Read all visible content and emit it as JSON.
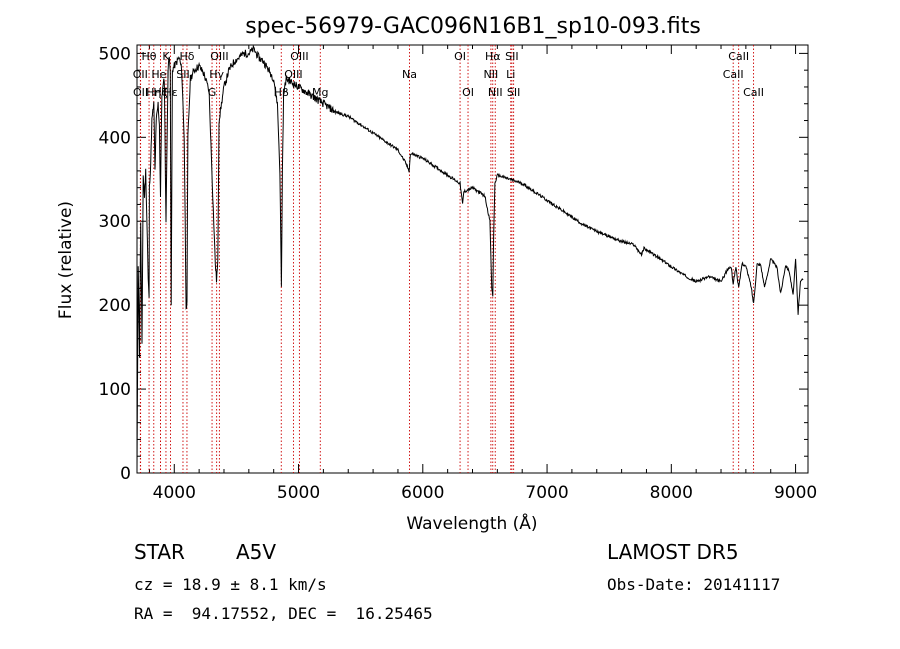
{
  "chart_data": {
    "type": "line",
    "title": "spec-56979-GAC096N16B1_sp10-093.fits",
    "xlabel": "Wavelength (Å)",
    "ylabel": "Flux (relative)",
    "xlim": [
      3700,
      9100
    ],
    "ylim": [
      0,
      510
    ],
    "xticks": [
      4000,
      5000,
      6000,
      7000,
      8000,
      9000
    ],
    "yticks": [
      0,
      100,
      200,
      300,
      400,
      500
    ],
    "grid": false,
    "line_color": "#000000",
    "marker_color": "#cc0000",
    "series": [
      {
        "x": [
          3700,
          3710,
          3720,
          3730,
          3740,
          3750,
          3760,
          3770,
          3780,
          3790,
          3797,
          3800,
          3810,
          3820,
          3835,
          3845,
          3855,
          3870,
          3880,
          3889,
          3900,
          3920,
          3933,
          3950,
          3960,
          3968,
          3975,
          3985,
          4000,
          4020,
          4040,
          4060,
          4080,
          4095,
          4102,
          4110,
          4130,
          4160,
          4200,
          4240,
          4280,
          4310,
          4330,
          4340,
          4350,
          4360,
          4400,
          4440,
          4480,
          4520,
          4560,
          4600,
          4640,
          4680,
          4720,
          4760,
          4800,
          4830,
          4850,
          4862,
          4870,
          4880,
          4900,
          4950,
          5000,
          5050,
          5100,
          5150,
          5200,
          5300,
          5400,
          5500,
          5600,
          5700,
          5800,
          5860,
          5890,
          5900,
          5920,
          6000,
          6100,
          6200,
          6300,
          6320,
          6330,
          6400,
          6450,
          6500,
          6540,
          6555,
          6563,
          6570,
          6580,
          6600,
          6700,
          6800,
          6900,
          7000,
          7100,
          7200,
          7300,
          7400,
          7500,
          7600,
          7700,
          7760,
          7780,
          7800,
          7900,
          8000,
          8100,
          8200,
          8300,
          8400,
          8450,
          8480,
          8498,
          8520,
          8542,
          8570,
          8600,
          8640,
          8662,
          8690,
          8720,
          8750,
          8800,
          8850,
          8880,
          8920,
          8950,
          8980,
          9000,
          9020,
          9040,
          9060
        ],
        "values": [
          0,
          250,
          140,
          300,
          150,
          355,
          330,
          360,
          300,
          230,
          210,
          340,
          370,
          420,
          440,
          360,
          420,
          440,
          415,
          330,
          450,
          470,
          300,
          480,
          500,
          480,
          200,
          480,
          485,
          490,
          495,
          480,
          400,
          200,
          200,
          400,
          470,
          480,
          485,
          475,
          455,
          330,
          250,
          230,
          250,
          420,
          460,
          480,
          490,
          495,
          500,
          500,
          505,
          495,
          490,
          480,
          470,
          440,
          360,
          220,
          360,
          450,
          470,
          465,
          460,
          455,
          450,
          445,
          440,
          430,
          425,
          415,
          405,
          395,
          385,
          370,
          360,
          380,
          380,
          375,
          365,
          355,
          345,
          320,
          335,
          340,
          335,
          330,
          300,
          220,
          210,
          280,
          345,
          355,
          350,
          345,
          335,
          325,
          315,
          305,
          295,
          288,
          282,
          276,
          272,
          260,
          268,
          266,
          256,
          246,
          236,
          228,
          234,
          228,
          242,
          246,
          226,
          246,
          220,
          250,
          246,
          224,
          202,
          249,
          248,
          221,
          255,
          245,
          214,
          248,
          240,
          211,
          255,
          190,
          230,
          230
        ]
      }
    ],
    "lines": [
      {
        "label": "Hθ",
        "x": 3797,
        "row": 1
      },
      {
        "label": "OII",
        "x": 3727,
        "row": 2
      },
      {
        "label": "OII",
        "x": 3729,
        "row": 3
      },
      {
        "label": "Hη",
        "x": 3835,
        "row": 3
      },
      {
        "label": "HeI",
        "x": 3889,
        "row": 2
      },
      {
        "label": "Hζ",
        "x": 3889,
        "row": 3
      },
      {
        "label": "K",
        "x": 3933,
        "row": 1
      },
      {
        "label": "SII",
        "x": 4070,
        "row": 2
      },
      {
        "label": "Hε",
        "x": 3970,
        "row": 3
      },
      {
        "label": "Hδ",
        "x": 4102,
        "row": 1
      },
      {
        "label": "OIII",
        "x": 4363,
        "row": 1
      },
      {
        "label": "Hγ",
        "x": 4341,
        "row": 2
      },
      {
        "label": "G",
        "x": 4304,
        "row": 3
      },
      {
        "label": "OIII",
        "x": 5007,
        "row": 1
      },
      {
        "label": "OIII",
        "x": 4959,
        "row": 2
      },
      {
        "label": "Hβ",
        "x": 4861,
        "row": 3
      },
      {
        "label": "Mg",
        "x": 5175,
        "row": 3
      },
      {
        "label": "Na",
        "x": 5893,
        "row": 2
      },
      {
        "label": "OI",
        "x": 6300,
        "row": 1
      },
      {
        "label": "OI",
        "x": 6364,
        "row": 3
      },
      {
        "label": "Hα",
        "x": 6563,
        "row": 1
      },
      {
        "label": "SII",
        "x": 6717,
        "row": 1
      },
      {
        "label": "NII",
        "x": 6548,
        "row": 2
      },
      {
        "label": "Li",
        "x": 6708,
        "row": 2
      },
      {
        "label": "NII",
        "x": 6583,
        "row": 3
      },
      {
        "label": "SII",
        "x": 6731,
        "row": 3
      },
      {
        "label": "CaII",
        "x": 8542,
        "row": 1
      },
      {
        "label": "CaII",
        "x": 8498,
        "row": 2
      },
      {
        "label": "CaII",
        "x": 8662,
        "row": 3
      }
    ]
  },
  "info": {
    "object_class": "STAR",
    "subclass": "A5V",
    "survey": "LAMOST DR5",
    "cz": "cz = 18.9 ± 8.1 km/s",
    "obs_date": "Obs-Date: 20141117",
    "radec": "RA =  94.17552, DEC =  16.25465"
  }
}
